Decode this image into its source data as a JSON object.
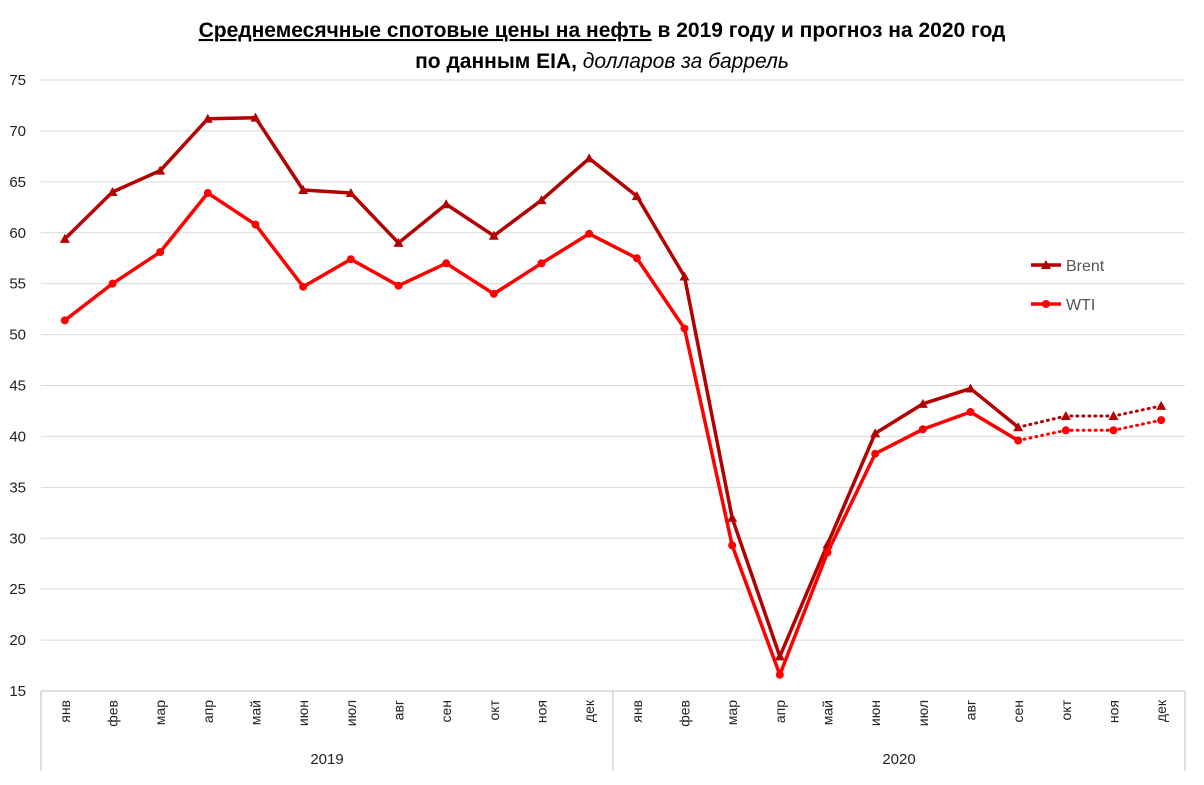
{
  "title": {
    "underlined": "Среднемесячные спотовые цены на нефть",
    "rest": " в 2019 году и прогноз на 2020 год",
    "line2_bold": "по данным EIA, ",
    "line2_italic": "долларов за баррель"
  },
  "chart_data": {
    "type": "line",
    "y_ticks": [
      "15",
      "20",
      "25",
      "30",
      "35",
      "40",
      "45",
      "50",
      "55",
      "60",
      "65",
      "70",
      "75"
    ],
    "ylim": [
      15,
      75
    ],
    "grid": true,
    "legend_position": "right",
    "years": [
      "2019",
      "2020"
    ],
    "categories": [
      "янв",
      "фев",
      "мар",
      "апр",
      "май",
      "июн",
      "июл",
      "авг",
      "сен",
      "окт",
      "ноя",
      "дек",
      "янв",
      "фев",
      "мар",
      "апр",
      "май",
      "июн",
      "июл",
      "авг",
      "сен",
      "окт",
      "ноя",
      "дек"
    ],
    "forecast_from_index": 20,
    "series": [
      {
        "name": "Brent",
        "color": "#b30000",
        "marker": "triangle",
        "values": [
          59.4,
          64.0,
          66.1,
          71.2,
          71.3,
          64.2,
          63.9,
          59.0,
          62.8,
          59.7,
          63.2,
          67.3,
          63.6,
          55.7,
          32.0,
          18.4,
          29.4,
          40.3,
          43.2,
          44.7,
          40.9,
          42.0,
          42.0,
          43.0
        ]
      },
      {
        "name": "WTI",
        "color": "#ff0000",
        "marker": "circle",
        "values": [
          51.4,
          55.0,
          58.1,
          63.9,
          60.8,
          54.7,
          57.4,
          54.8,
          57.0,
          54.0,
          57.0,
          59.9,
          57.5,
          50.6,
          29.3,
          16.6,
          28.6,
          38.3,
          40.7,
          42.4,
          39.6,
          40.6,
          40.6,
          41.6
        ]
      }
    ]
  }
}
